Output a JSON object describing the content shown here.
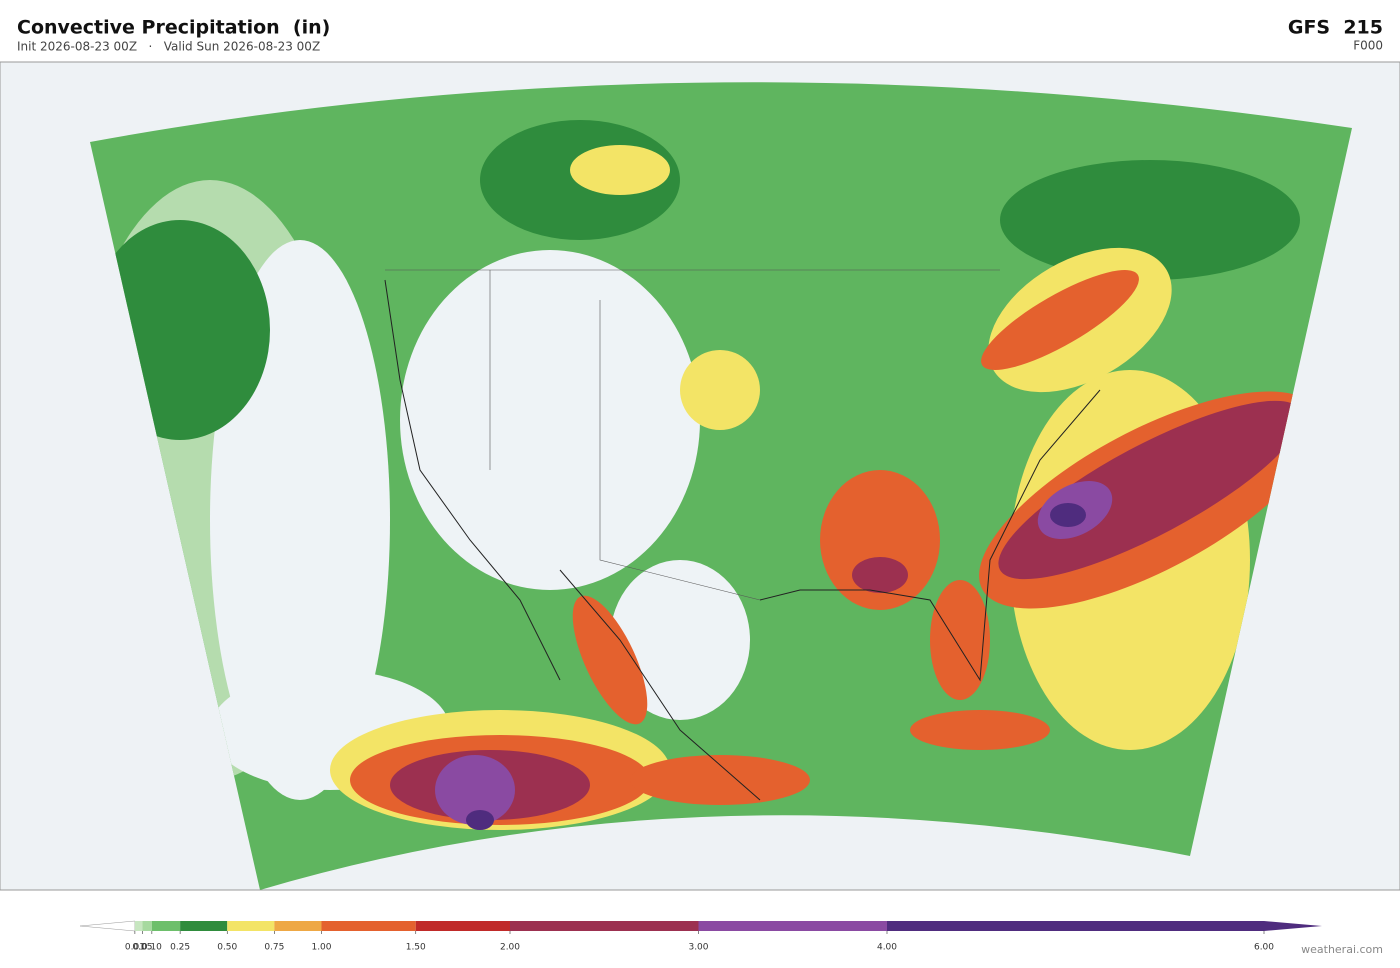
{
  "header": {
    "title": "Convective Precipitation  (in)",
    "subtitle": "Init 2026-08-23 00Z   ·   Valid Sun 2026-08-23 00Z",
    "model": "GFS  215",
    "forecast_hour": "F000"
  },
  "colorbar": {
    "ticks": [
      0.01,
      0.05,
      {
        "value": 0.1,
        "label": "0.10"
      },
      0.25,
      {
        "value": 0.5,
        "label": "0.50"
      },
      0.75,
      {
        "value": 1,
        "label": "1.00"
      },
      {
        "value": 1.5,
        "label": "1.50"
      },
      {
        "value": 2,
        "label": "2.00"
      },
      {
        "value": 3,
        "label": "3.00"
      },
      {
        "value": 4,
        "label": "4.00"
      },
      {
        "value": 6,
        "label": "6.00"
      }
    ],
    "colors": [
      "#c7e6c0",
      "#a6d99f",
      "#6dbf6b",
      "#2f8c3d",
      "#f3e466",
      "#eea845",
      "#e4612e",
      "#c02a29",
      "#9c3050",
      "#8a4aa2",
      "#4f2c7e"
    ],
    "under_color": "#ffffff",
    "over_color": "#4f2c7e"
  },
  "credit": "weatherai.com"
}
